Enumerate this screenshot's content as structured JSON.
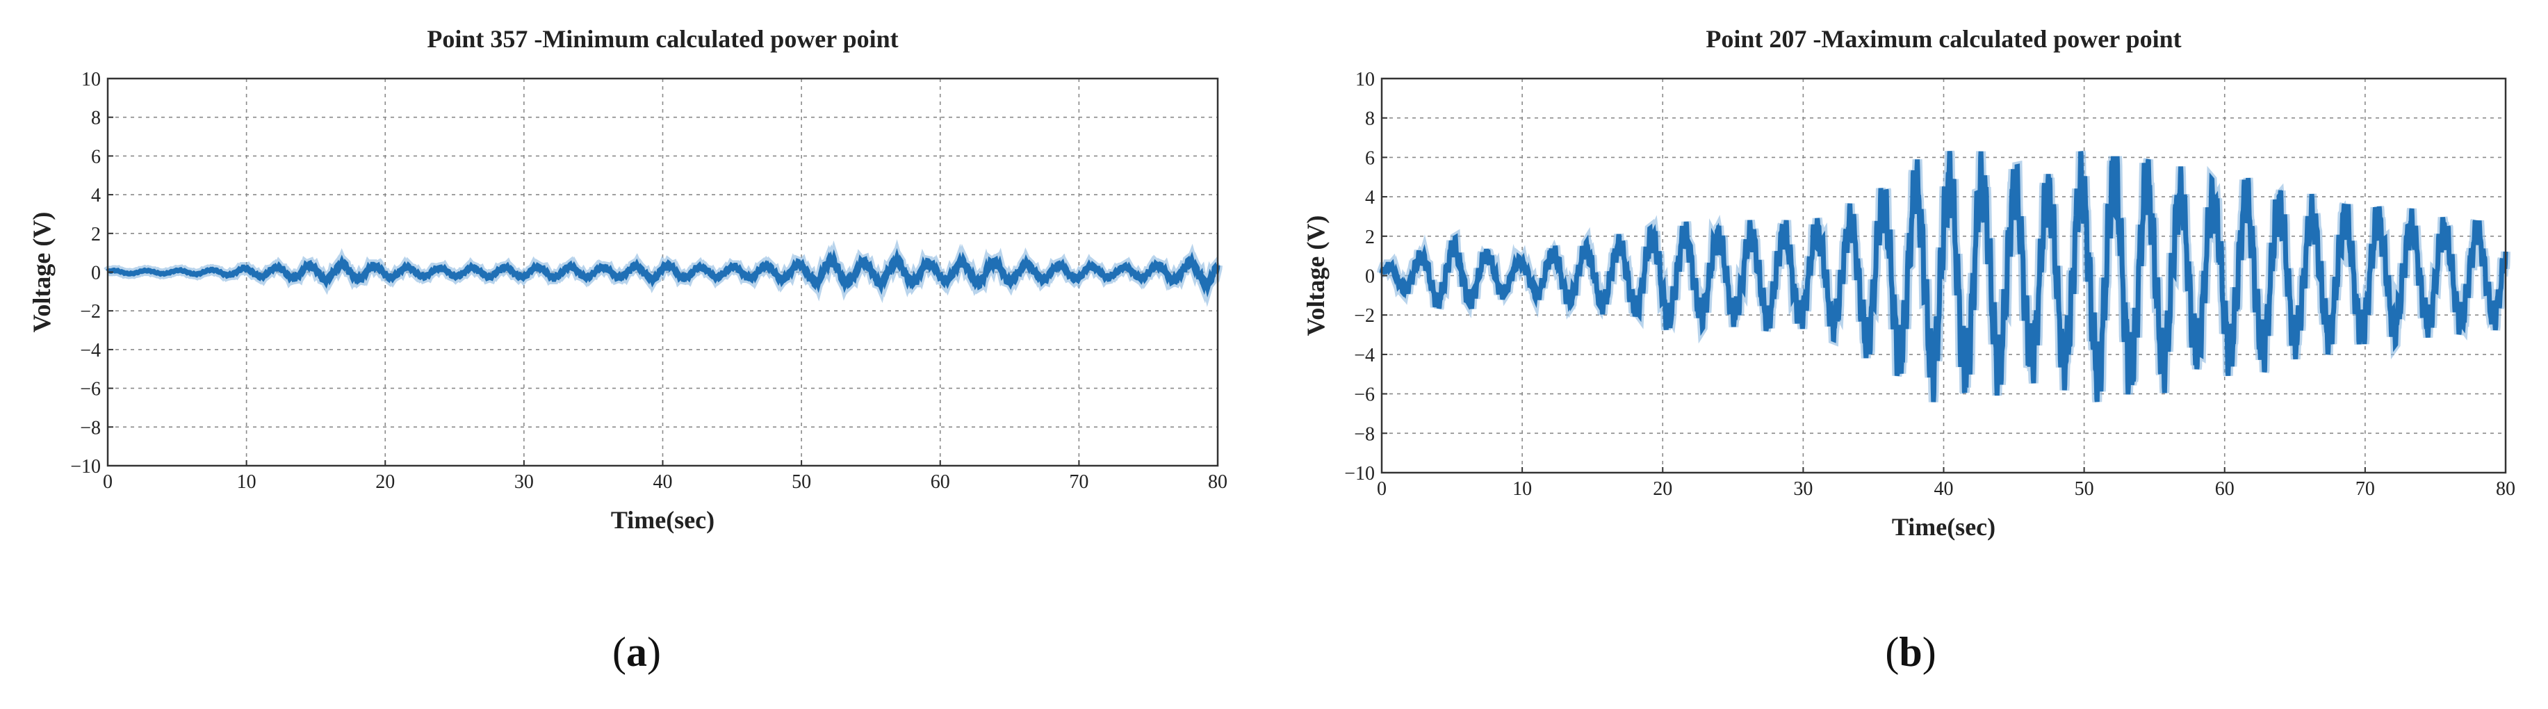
{
  "chart_data": [
    {
      "type": "line",
      "title": "Point 357 -Minimum calculated power point",
      "xlabel": "Time(sec)",
      "ylabel": "Voltage (V)",
      "xlim": [
        0,
        80
      ],
      "ylim": [
        -10,
        10
      ],
      "xticks": [
        0,
        10,
        20,
        30,
        40,
        50,
        60,
        70,
        80
      ],
      "yticks": [
        10,
        8,
        6,
        4,
        2,
        0,
        -2,
        -4,
        -6,
        -8,
        -10
      ],
      "xtick_labels": [
        "0",
        "10",
        "20",
        "30",
        "40",
        "50",
        "60",
        "70",
        "80"
      ],
      "ytick_labels": [
        "10",
        "8",
        "6",
        "4",
        "2",
        "0",
        "−2",
        "−4",
        "−6",
        "−8",
        "−10"
      ],
      "grid": true,
      "sublabel": "a",
      "series": [
        {
          "color": "#1f6fb5",
          "envelope": {
            "t": [
              0,
              4,
              8,
              10,
              12,
              15,
              17,
              20,
              24,
              28,
              30,
              33,
              36,
              40,
              43,
              46,
              50,
              52,
              54,
              57,
              60,
              63,
              66,
              70,
              73,
              76,
              78,
              79,
              80
            ],
            "amplitude": [
              0.1,
              0.1,
              0.15,
              0.25,
              0.3,
              0.45,
              0.5,
              0.35,
              0.25,
              0.3,
              0.3,
              0.35,
              0.3,
              0.45,
              0.3,
              0.35,
              0.5,
              0.75,
              0.6,
              0.7,
              0.5,
              0.7,
              0.5,
              0.4,
              0.3,
              0.45,
              0.6,
              0.75,
              0.7
            ]
          }
        }
      ]
    },
    {
      "type": "line",
      "title": "Point 207 -Maximum calculated power point",
      "xlabel": "Time(sec)",
      "ylabel": "Voltage (V)",
      "xlim": [
        0,
        80
      ],
      "ylim": [
        -10,
        10
      ],
      "xticks": [
        0,
        10,
        20,
        30,
        40,
        50,
        60,
        70,
        80
      ],
      "yticks": [
        10,
        8,
        6,
        4,
        2,
        0,
        -2,
        -4,
        -6,
        -8,
        -10
      ],
      "xtick_labels": [
        "0",
        "10",
        "20",
        "30",
        "40",
        "50",
        "60",
        "70",
        "80"
      ],
      "ytick_labels": [
        "10",
        "8",
        "6",
        "4",
        "2",
        "0",
        "−2",
        "−4",
        "−6",
        "−8",
        "−10"
      ],
      "grid": true,
      "sublabel": "b",
      "series": [
        {
          "color": "#1f6fb5",
          "envelope": {
            "t": [
              0,
              2,
              5,
              8,
              10,
              12,
              15,
              18,
              20,
              22,
              25,
              28,
              30,
              33,
              35,
              37,
              40,
              42,
              45,
              48,
              50,
              52,
              55,
              58,
              60,
              63,
              66,
              70,
              73,
              76,
              78,
              80
            ],
            "amplitude": [
              0.4,
              1.0,
              1.8,
              1.2,
              0.8,
              1.4,
              1.6,
              2.0,
              2.6,
              2.4,
              2.4,
              2.6,
              2.6,
              3.0,
              4.2,
              5.0,
              5.8,
              5.8,
              5.2,
              5.0,
              5.6,
              6.1,
              5.4,
              4.6,
              4.6,
              4.5,
              3.6,
              3.5,
              3.0,
              2.8,
              2.6,
              2.4
            ]
          }
        }
      ]
    }
  ]
}
